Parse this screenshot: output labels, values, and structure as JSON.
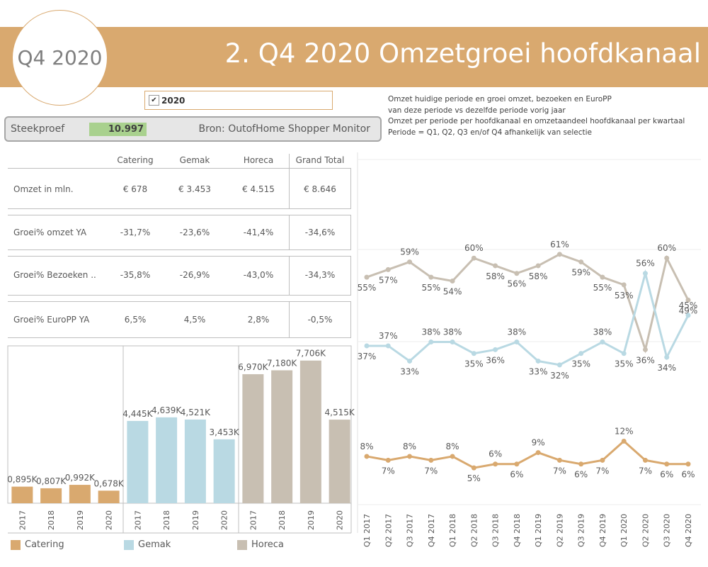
{
  "header": {
    "badge": "Q4 2020",
    "title": "2. Q4 2020 Omzetgroei hoofdkanaal"
  },
  "filter": {
    "checked": true,
    "check_glyph": "✔",
    "label": "2020"
  },
  "description": [
    "Omzet huidige periode en groei omzet, bezoeken en EuroPP",
    "van deze periode vs dezelfde periode vorig jaar",
    "Omzet per periode per hoofdkanaal en omzetaandeel hoofdkanaal per kwartaal",
    "Periode = Q1, Q2, Q3 en/of Q4 afhankelijk van selectie"
  ],
  "sample": {
    "label": "Steekproef",
    "value": "10.997",
    "source": "Bron: OutofHome Shopper Monitor"
  },
  "kpi_table": {
    "columns": [
      "Catering",
      "Gemak",
      "Horeca",
      "Grand Total"
    ],
    "rows": [
      {
        "label": "Omzet in mln.",
        "values": [
          "€ 678",
          "€ 3.453",
          "€ 4.515",
          "€ 8.646"
        ]
      },
      {
        "label": "Groei% omzet YA",
        "values": [
          "-31,7%",
          "-23,6%",
          "-41,4%",
          "-34,6%"
        ]
      },
      {
        "label": "Groei% Bezoeken ..",
        "values": [
          "-35,8%",
          "-26,9%",
          "-43,0%",
          "-34,3%"
        ]
      },
      {
        "label": "Groei% EuroPP YA",
        "values": [
          "6,5%",
          "4,5%",
          "2,8%",
          "-0,5%"
        ]
      }
    ]
  },
  "colors": {
    "catering": "#d9a96f",
    "gemak": "#b9d9e3",
    "horeca": "#c8bfb2",
    "banner": "#d9a96f",
    "sample_value_bg": "#a9d18e"
  },
  "legend": [
    {
      "name": "Catering",
      "color": "#d9a96f"
    },
    {
      "name": "Gemak",
      "color": "#b9d9e3"
    },
    {
      "name": "Horeca",
      "color": "#c8bfb2"
    }
  ],
  "chart_data": [
    {
      "type": "bar",
      "categories": [
        "2017",
        "2018",
        "2019",
        "2020"
      ],
      "series": [
        {
          "name": "Catering",
          "values": [
            895,
            807,
            992,
            678
          ],
          "labels": [
            "0,895K",
            "0,807K",
            "0,992K",
            "0,678K"
          ]
        },
        {
          "name": "Gemak",
          "values": [
            4445,
            4639,
            4521,
            3453
          ],
          "labels": [
            "4,445K",
            "4,639K",
            "4,521K",
            "3,453K"
          ]
        },
        {
          "name": "Horeca",
          "values": [
            6970,
            7180,
            7706,
            4515
          ],
          "labels": [
            "6,970K",
            "7,180K",
            "7,706K",
            "4,515K"
          ]
        }
      ],
      "ylim": [
        0,
        8500
      ],
      "legend": "bottom"
    },
    {
      "type": "line",
      "categories": [
        "Q1 2017",
        "Q2 2017",
        "Q3 2017",
        "Q4 2017",
        "Q1 2018",
        "Q2 2018",
        "Q3 2018",
        "Q4 2018",
        "Q1 2019",
        "Q2 2019",
        "Q3 2019",
        "Q4 2019",
        "Q1 2020",
        "Q2 2020",
        "Q3 2020",
        "Q4 2020"
      ],
      "series": [
        {
          "name": "Horeca",
          "values": [
            55,
            57,
            59,
            55,
            54,
            60,
            58,
            56,
            58,
            61,
            59,
            55,
            53,
            36,
            60,
            49
          ]
        },
        {
          "name": "Gemak",
          "values": [
            37,
            37,
            33,
            38,
            38,
            35,
            36,
            38,
            33,
            32,
            35,
            38,
            35,
            56,
            34,
            45
          ]
        },
        {
          "name": "Catering",
          "values": [
            8,
            7,
            8,
            7,
            8,
            5,
            6,
            6,
            9,
            7,
            6,
            7,
            12,
            7,
            6,
            6
          ]
        }
      ],
      "unit": "%",
      "grid": true
    }
  ]
}
